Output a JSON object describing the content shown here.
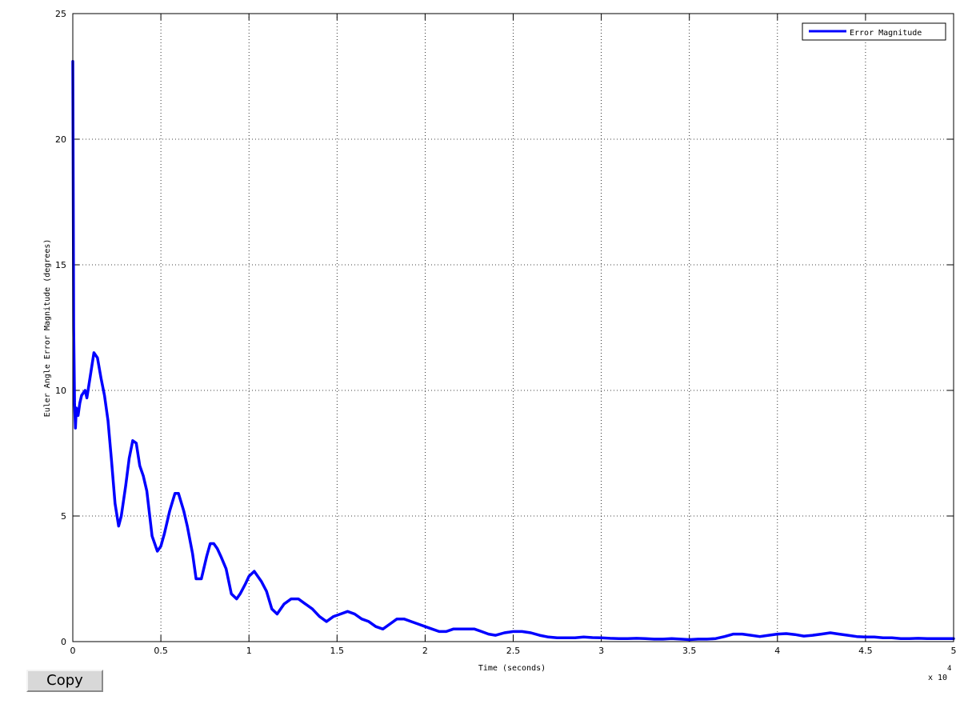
{
  "window": {
    "copy_button_label": "Copy"
  },
  "chart_data": {
    "type": "line",
    "title": "",
    "xlabel": "Time (seconds)",
    "ylabel": "Euler Angle Error Magnitude (degrees)",
    "x_multiplier": "x 10",
    "x_multiplier_exponent": "4",
    "xlim": [
      0,
      50000
    ],
    "ylim": [
      0,
      25
    ],
    "x_ticks": [
      0,
      5000,
      10000,
      15000,
      20000,
      25000,
      30000,
      35000,
      40000,
      45000,
      50000
    ],
    "x_tick_labels": [
      "0",
      "0.5",
      "1",
      "1.5",
      "2",
      "2.5",
      "3",
      "3.5",
      "4",
      "4.5",
      "5"
    ],
    "y_ticks": [
      0,
      5,
      10,
      15,
      20,
      25
    ],
    "y_tick_labels": [
      "0",
      "5",
      "10",
      "15",
      "20",
      "25"
    ],
    "grid": true,
    "grid_style": "dotted",
    "legend_position": "top-right",
    "series_color": "#0000ff",
    "series": [
      {
        "name": "Error Magnitude",
        "x": [
          0,
          50,
          100,
          150,
          200,
          300,
          400,
          500,
          600,
          700,
          800,
          1000,
          1200,
          1400,
          1600,
          1800,
          2000,
          2200,
          2400,
          2600,
          2750,
          3000,
          3200,
          3400,
          3600,
          3800,
          4000,
          4200,
          4500,
          4800,
          5000,
          5200,
          5500,
          5800,
          6000,
          6300,
          6500,
          6800,
          7000,
          7300,
          7600,
          7800,
          8000,
          8200,
          8400,
          8700,
          9000,
          9300,
          9500,
          9800,
          10000,
          10300,
          10700,
          11000,
          11300,
          11600,
          12000,
          12400,
          12800,
          13200,
          13600,
          14000,
          14400,
          14800,
          15200,
          15600,
          16000,
          16400,
          16800,
          17200,
          17600,
          18000,
          18400,
          18800,
          19200,
          19600,
          20000,
          20400,
          20800,
          21200,
          21600,
          22000,
          22400,
          22800,
          23200,
          23600,
          24000,
          24500,
          25000,
          25500,
          26000,
          26500,
          27000,
          27500,
          28000,
          28500,
          29000,
          29500,
          30000,
          30500,
          31000,
          31500,
          32000,
          32500,
          33000,
          33500,
          34000,
          34500,
          35000,
          35500,
          36000,
          36500,
          37000,
          37500,
          38000,
          38500,
          39000,
          39500,
          40000,
          40500,
          41000,
          41500,
          42000,
          42500,
          43000,
          43500,
          44000,
          44500,
          45000,
          45500,
          46000,
          46500,
          47000,
          47500,
          48000,
          48500,
          49000,
          49500,
          50000
        ],
        "y": [
          23.1,
          12.5,
          9.5,
          8.5,
          9.3,
          9.0,
          9.5,
          9.8,
          9.9,
          10.0,
          9.7,
          10.6,
          11.5,
          11.3,
          10.5,
          9.8,
          8.8,
          7.2,
          5.5,
          4.6,
          5.0,
          6.2,
          7.3,
          8.0,
          7.9,
          7.0,
          6.6,
          6.0,
          4.2,
          3.6,
          3.8,
          4.3,
          5.2,
          5.9,
          5.9,
          5.2,
          4.6,
          3.5,
          2.5,
          2.5,
          3.4,
          3.9,
          3.9,
          3.7,
          3.4,
          2.9,
          1.9,
          1.7,
          1.9,
          2.3,
          2.6,
          2.8,
          2.4,
          2.0,
          1.3,
          1.1,
          1.5,
          1.7,
          1.7,
          1.5,
          1.3,
          1.0,
          0.8,
          1.0,
          1.1,
          1.2,
          1.1,
          0.9,
          0.8,
          0.6,
          0.5,
          0.7,
          0.9,
          0.9,
          0.8,
          0.7,
          0.6,
          0.5,
          0.4,
          0.4,
          0.5,
          0.5,
          0.5,
          0.5,
          0.4,
          0.3,
          0.25,
          0.35,
          0.4,
          0.4,
          0.35,
          0.25,
          0.18,
          0.15,
          0.15,
          0.15,
          0.18,
          0.16,
          0.15,
          0.13,
          0.12,
          0.12,
          0.13,
          0.12,
          0.1,
          0.1,
          0.12,
          0.1,
          0.08,
          0.1,
          0.1,
          0.12,
          0.2,
          0.3,
          0.3,
          0.25,
          0.2,
          0.25,
          0.3,
          0.32,
          0.28,
          0.22,
          0.25,
          0.3,
          0.35,
          0.3,
          0.25,
          0.2,
          0.18,
          0.18,
          0.15,
          0.15,
          0.12,
          0.12,
          0.13,
          0.12,
          0.12,
          0.12,
          0.12
        ]
      }
    ]
  }
}
